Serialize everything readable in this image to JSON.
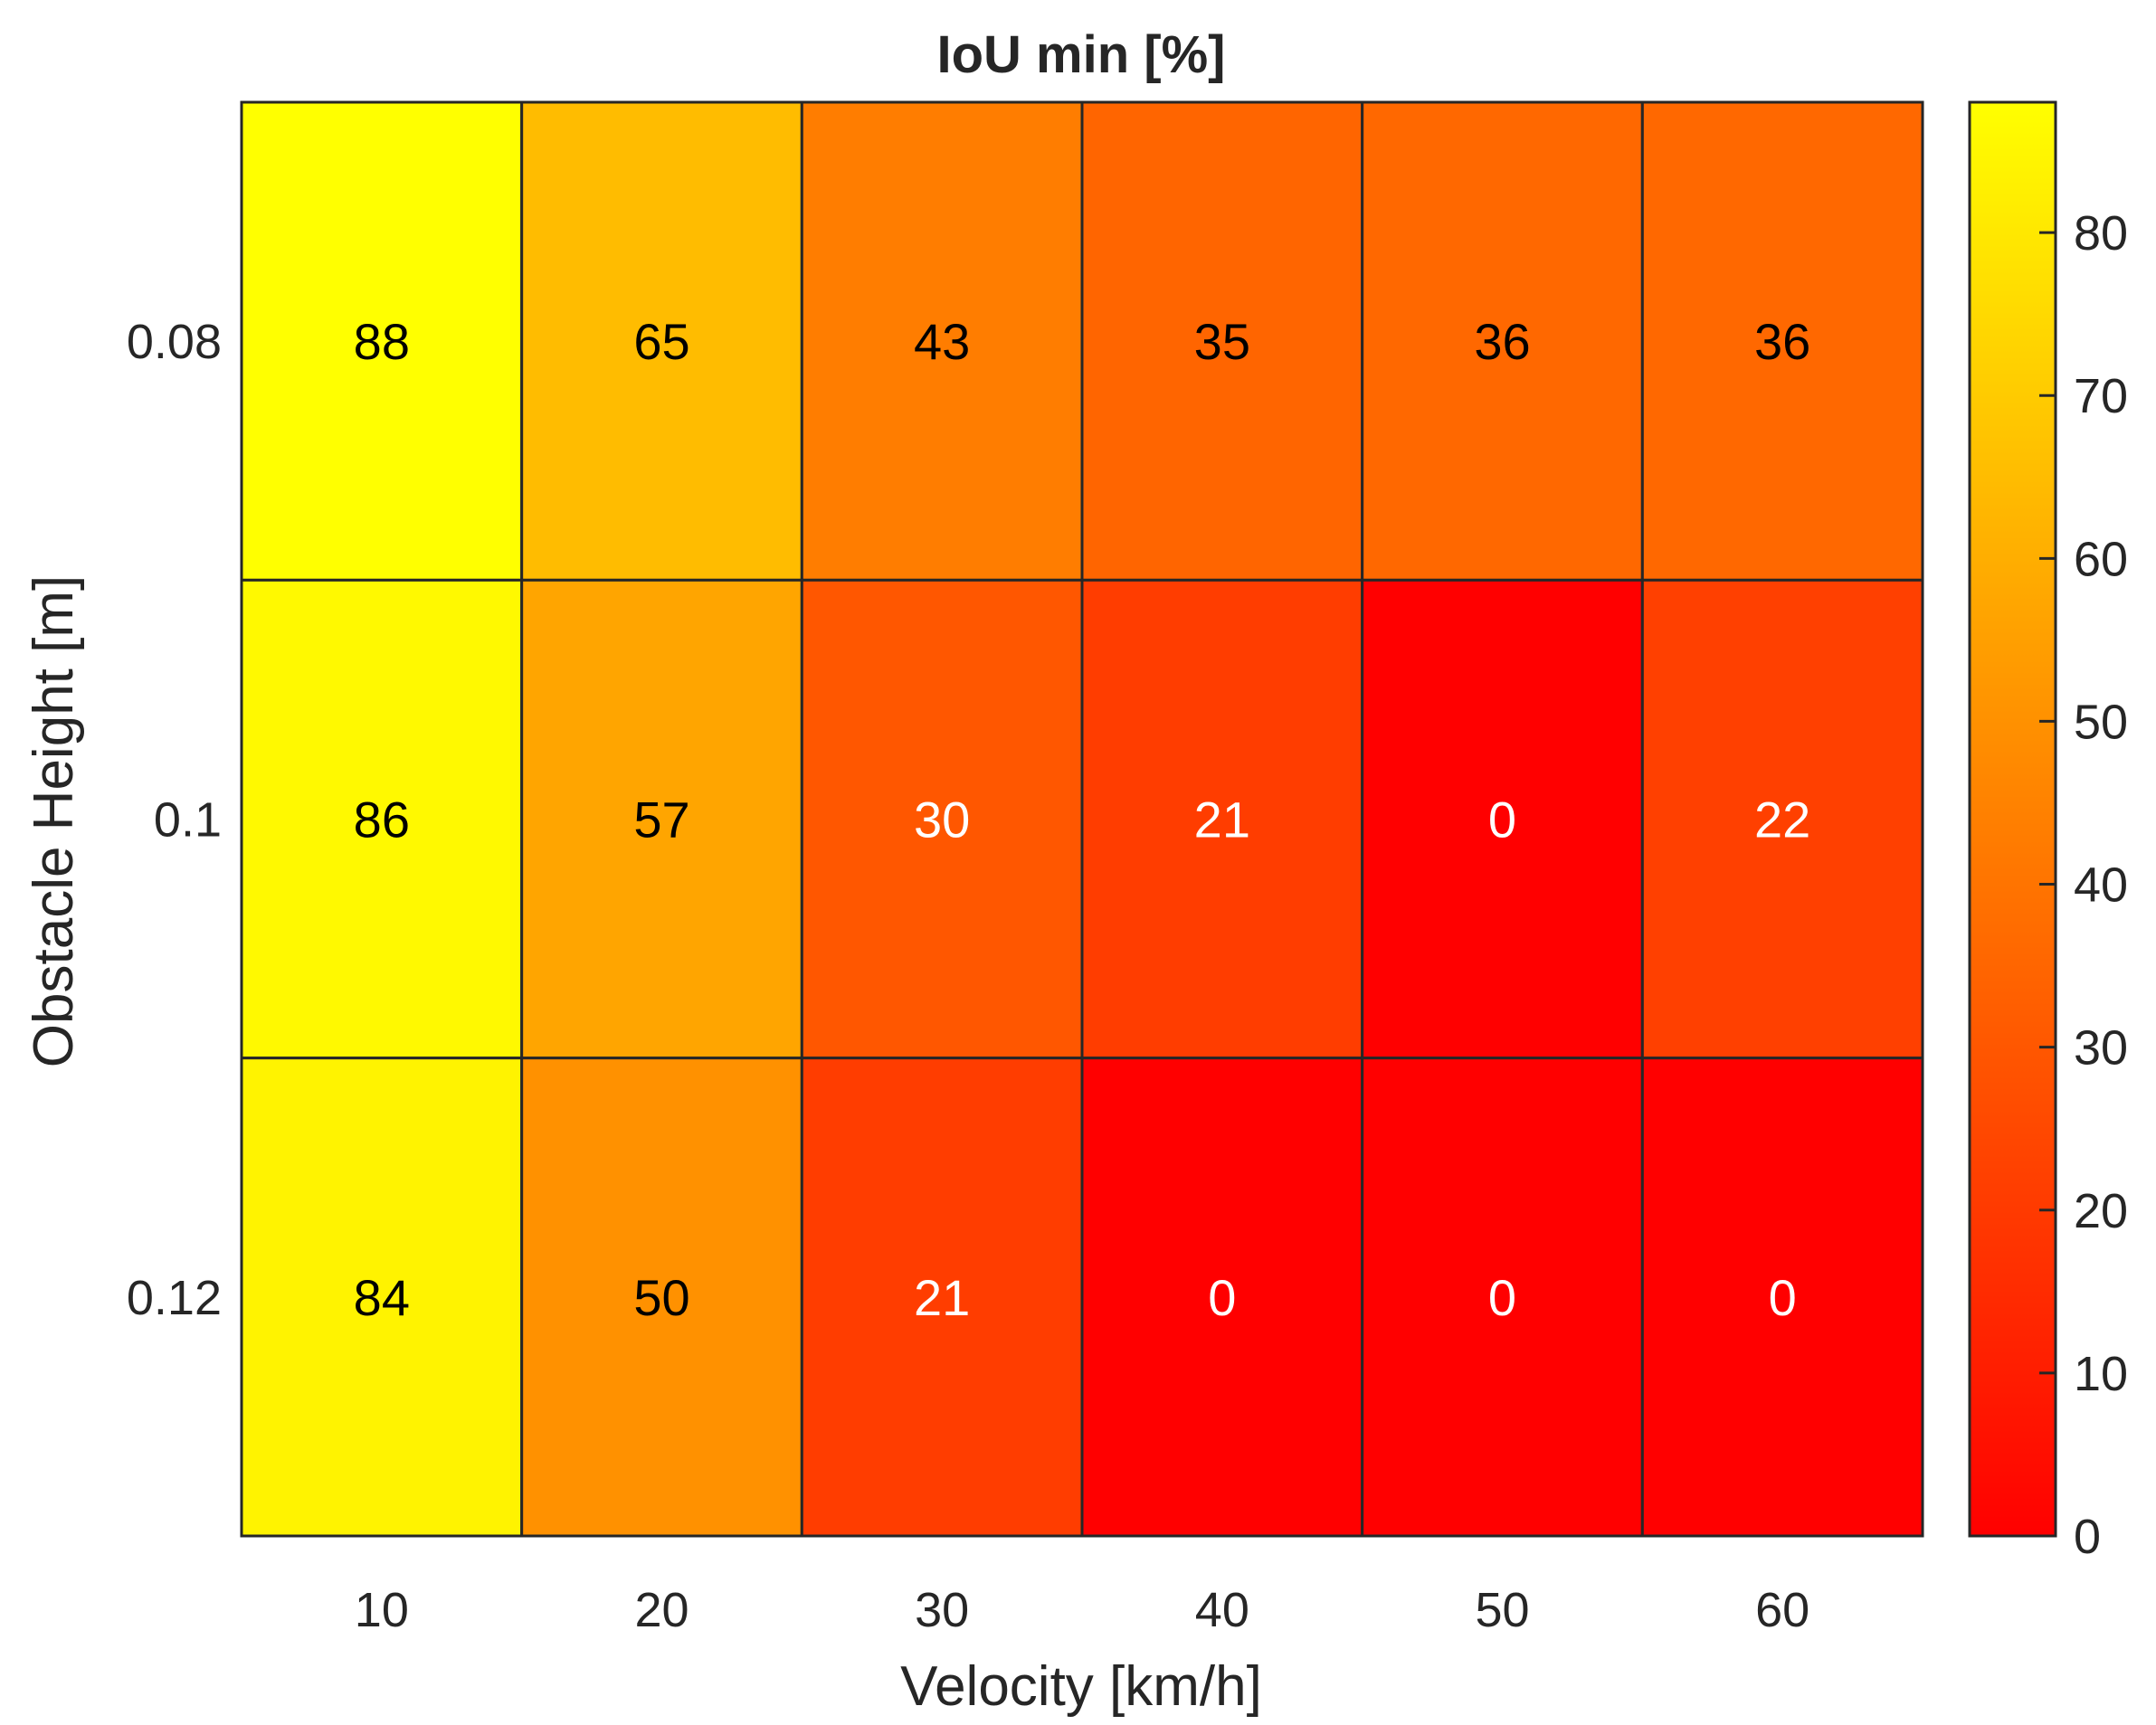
{
  "chart_data": {
    "type": "heatmap",
    "title": "IoU min [%]",
    "xlabel": "Velocity [km/h]",
    "ylabel": "Obstacle Height [m]",
    "x_categories": [
      "10",
      "20",
      "30",
      "40",
      "50",
      "60"
    ],
    "y_categories": [
      "0.08",
      "0.1",
      "0.12"
    ],
    "values": [
      [
        88,
        65,
        43,
        35,
        36,
        36
      ],
      [
        86,
        57,
        30,
        21,
        0,
        22
      ],
      [
        84,
        50,
        21,
        0,
        0,
        0
      ]
    ],
    "colormap": "autumn",
    "colorbar": {
      "range": [
        0,
        88
      ],
      "ticks": [
        0,
        10,
        20,
        30,
        40,
        50,
        60,
        70,
        80
      ],
      "tick_labels": [
        "0",
        "10",
        "20",
        "30",
        "40",
        "50",
        "60",
        "70",
        "80"
      ]
    },
    "colors": {
      "low": "#ff0000",
      "high": "#ffff00",
      "grid_line": "#262626",
      "label_dark": "#000000",
      "label_light": "#ffffff"
    },
    "label_threshold": 33
  }
}
